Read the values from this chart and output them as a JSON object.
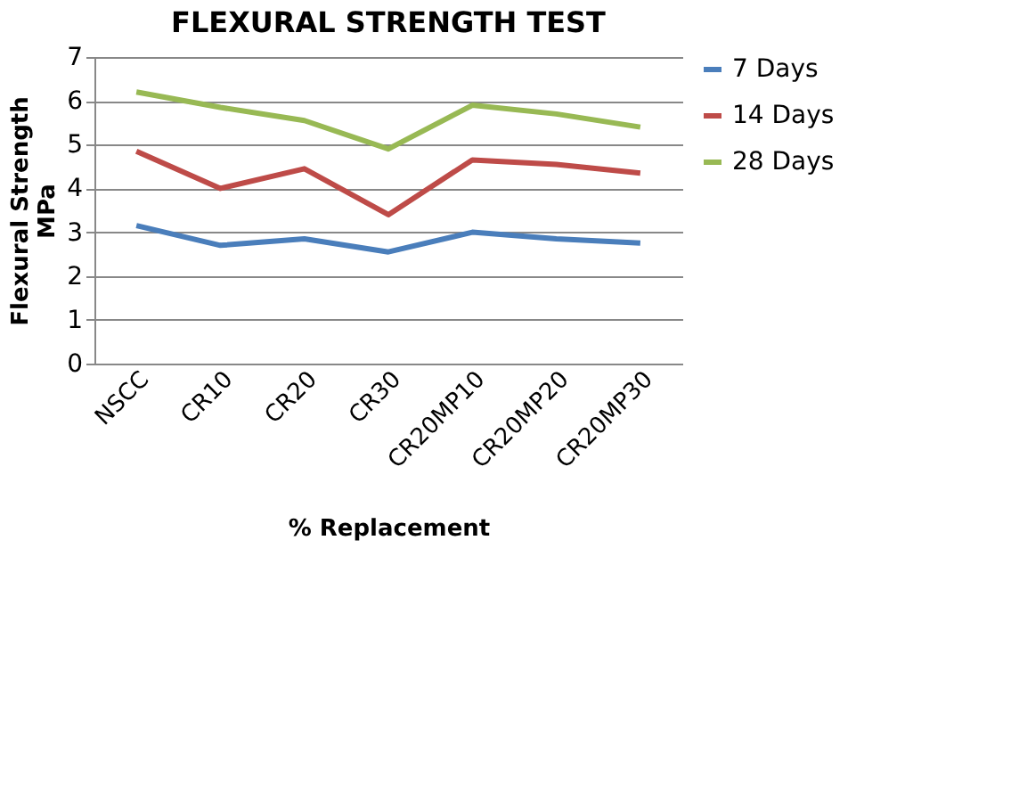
{
  "chart_data": {
    "type": "line",
    "title": "FLEXURAL STRENGTH TEST",
    "xlabel": "% Replacement",
    "ylabel": "Flexural Strength\nMPa",
    "categories": [
      "NSCC",
      "CR10",
      "CR20",
      "CR30",
      "CR20MP10",
      "CR20MP20",
      "CR20MP30"
    ],
    "series": [
      {
        "name": "7 Days",
        "color": "#4a7ebb",
        "values": [
          3.15,
          2.7,
          2.85,
          2.55,
          3.0,
          2.85,
          2.75
        ]
      },
      {
        "name": "14 Days",
        "color": "#be4b48",
        "values": [
          4.85,
          4.0,
          4.45,
          3.4,
          4.65,
          4.55,
          4.35
        ]
      },
      {
        "name": "28 Days",
        "color": "#98b954",
        "values": [
          6.2,
          5.85,
          5.55,
          4.9,
          5.9,
          5.7,
          5.4
        ]
      }
    ],
    "ylim": [
      0,
      7
    ],
    "yticks": [
      0,
      1,
      2,
      3,
      4,
      5,
      6,
      7
    ],
    "grid": "y",
    "legend": "right",
    "marker": "none",
    "line_style": "solid"
  }
}
